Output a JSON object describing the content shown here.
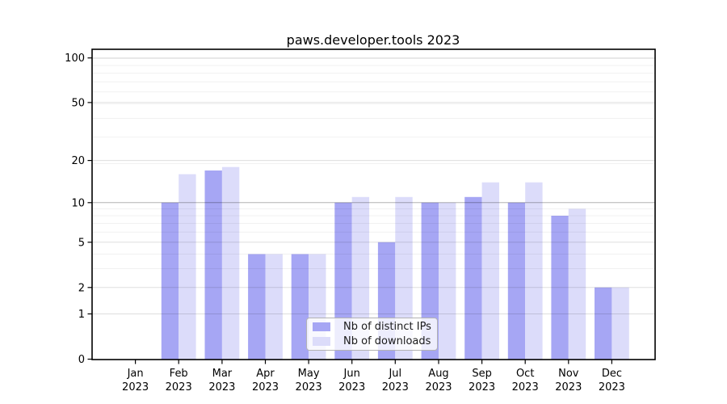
{
  "chart_data": {
    "type": "bar",
    "title": "paws.developer.tools 2023",
    "scale": "log1p",
    "grid": true,
    "categories": [
      "Jan",
      "Feb",
      "Mar",
      "Apr",
      "May",
      "Jun",
      "Jul",
      "Aug",
      "Sep",
      "Oct",
      "Nov",
      "Dec"
    ],
    "category_year": "2023",
    "yticks": [
      0,
      1,
      2,
      5,
      10,
      20,
      50,
      100
    ],
    "ylim": [
      0,
      100
    ],
    "legend_position": "lower-center-inside",
    "series": [
      {
        "name": "Nb of distinct IPs",
        "color": "#a6a6f4",
        "values": [
          0,
          10,
          17,
          4,
          4,
          10,
          5,
          10,
          11,
          10,
          8,
          2
        ]
      },
      {
        "name": "Nb of downloads",
        "color": "#dcdcfa",
        "values": [
          0,
          16,
          18,
          4,
          4,
          11,
          11,
          10,
          14,
          14,
          9,
          2
        ]
      }
    ]
  }
}
